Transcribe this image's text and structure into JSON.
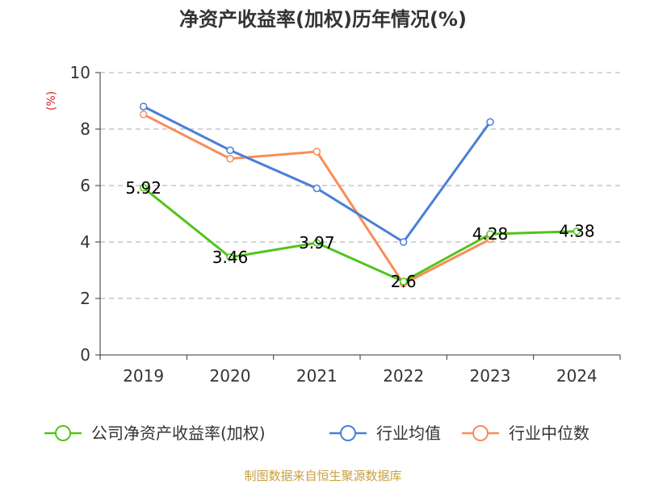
{
  "chart_data": {
    "type": "line",
    "title": "净资产收益率(加权)历年情况(%)",
    "ylabel": "(%)",
    "xlabel": "",
    "categories": [
      "2019",
      "2020",
      "2021",
      "2022",
      "2023",
      "2024"
    ],
    "ylim": [
      0,
      10
    ],
    "yticks": [
      0,
      2,
      4,
      6,
      8,
      10
    ],
    "grid": true,
    "legend_position": "bottom",
    "series": [
      {
        "name": "公司净资产收益率(加权)",
        "color": "#52c41a",
        "values": [
          5.92,
          3.46,
          3.97,
          2.6,
          4.28,
          4.38
        ],
        "labels": [
          "5.92",
          "3.46",
          "3.97",
          "2.6",
          "4.28",
          "4.38"
        ]
      },
      {
        "name": "行业均值",
        "color": "#4a7fd8",
        "values": [
          8.8,
          7.25,
          5.9,
          4.0,
          8.25,
          null
        ]
      },
      {
        "name": "行业中位数",
        "color": "#fa8c5a",
        "values": [
          8.52,
          6.95,
          7.2,
          2.52,
          4.1,
          null
        ]
      }
    ],
    "source": "制图数据来自恒生聚源数据库"
  },
  "colors": {
    "source": "#c8a040",
    "ylabel": "#e02020",
    "grid": "#bbbbbb",
    "axis": "#333333"
  }
}
